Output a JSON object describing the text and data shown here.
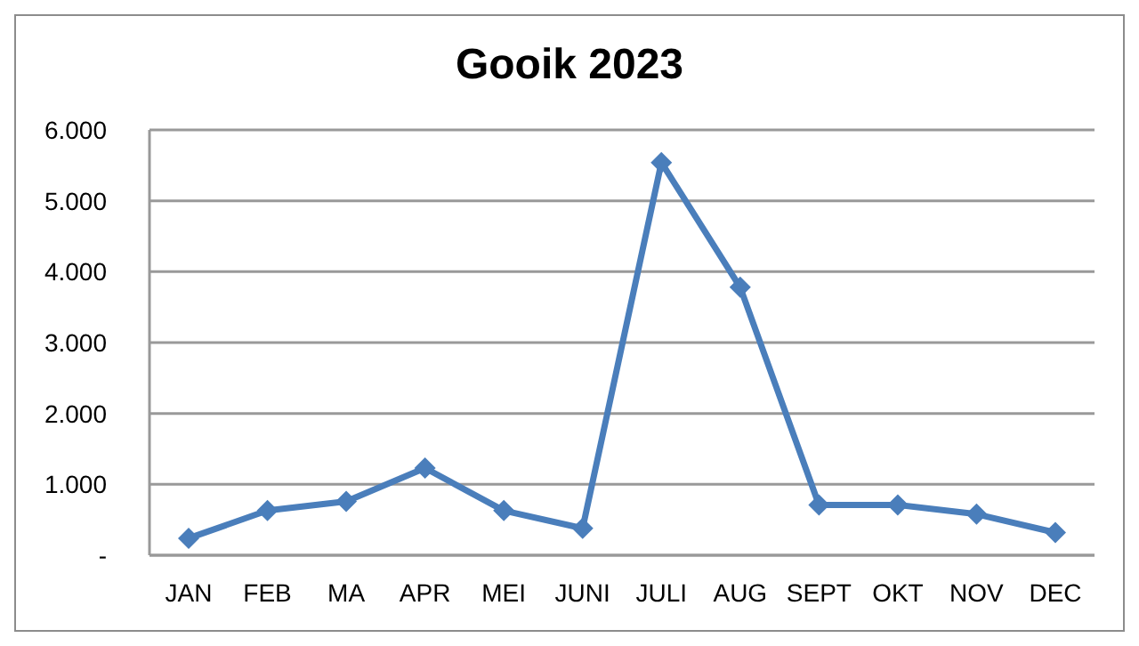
{
  "chart_data": {
    "type": "line",
    "title": "Gooik 2023",
    "categories": [
      "JAN",
      "FEB",
      "MA",
      "APR",
      "MEI",
      "JUNI",
      "JULI",
      "AUG",
      "SEPT",
      "OKT",
      "NOV",
      "DEC"
    ],
    "series": [
      {
        "color": "#4a7ebb",
        "values": [
          240,
          630,
          760,
          1230,
          630,
          380,
          5540,
          3780,
          710,
          710,
          580,
          320
        ]
      }
    ],
    "ylim": [
      0,
      6000
    ],
    "yticks": [
      {
        "value": 0,
        "label": "-"
      },
      {
        "value": 1000,
        "label": "1.000"
      },
      {
        "value": 2000,
        "label": "2.000"
      },
      {
        "value": 3000,
        "label": "3.000"
      },
      {
        "value": 4000,
        "label": "4.000"
      },
      {
        "value": 5000,
        "label": "5.000"
      },
      {
        "value": 6000,
        "label": "6.000"
      }
    ],
    "grid": "y",
    "legend": false,
    "marker": "diamond",
    "line_style": "solid"
  }
}
